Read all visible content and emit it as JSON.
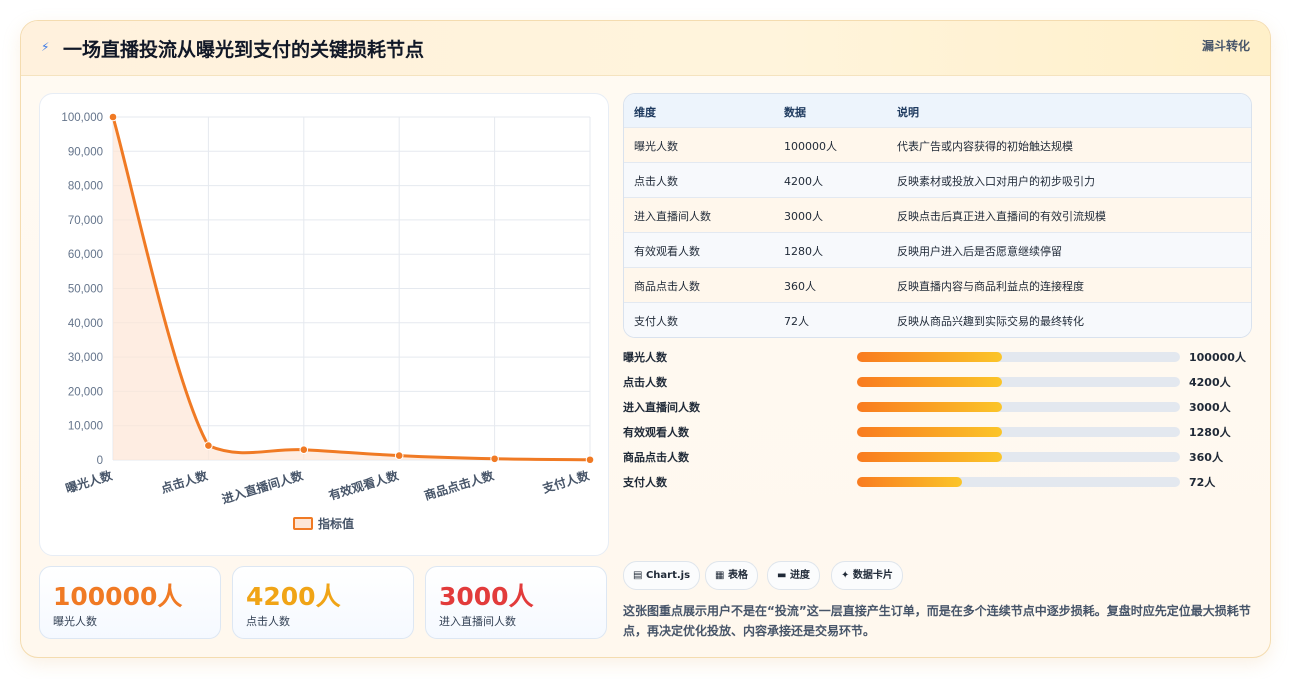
{
  "header": {
    "title": "一场直播投流从曝光到支付的关键损耗节点",
    "tag": "漏斗转化"
  },
  "chart_data": {
    "type": "line",
    "categories": [
      "曝光人数",
      "点击人数",
      "进入直播间人数",
      "有效观看人数",
      "商品点击人数",
      "支付人数"
    ],
    "series": [
      {
        "name": "指标值",
        "values": [
          100000,
          4200,
          3000,
          1280,
          360,
          72
        ]
      }
    ],
    "ylim": [
      0,
      100000
    ],
    "yticks": [
      "100,000",
      "90,000",
      "80,000",
      "70,000",
      "60,000",
      "50,000",
      "40,000",
      "30,000",
      "20,000",
      "10,000",
      "0"
    ],
    "legend": "bottom",
    "grid": true,
    "colors": {
      "line": "#f07a24",
      "fill": "#fde6d6"
    }
  },
  "stats": [
    {
      "value": "100000人",
      "label": "曝光人数",
      "color": "#f07a24"
    },
    {
      "value": "4200人",
      "label": "点击人数",
      "color": "#f0a416"
    },
    {
      "value": "3000人",
      "label": "进入直播间人数",
      "color": "#e23b3b"
    }
  ],
  "table": {
    "headers": [
      "维度",
      "数据",
      "说明"
    ],
    "rows": [
      [
        "曝光人数",
        "100000人",
        "代表广告或内容获得的初始触达规模"
      ],
      [
        "点击人数",
        "4200人",
        "反映素材或投放入口对用户的初步吸引力"
      ],
      [
        "进入直播间人数",
        "3000人",
        "反映点击后真正进入直播间的有效引流规模"
      ],
      [
        "有效观看人数",
        "1280人",
        "反映用户进入后是否愿意继续停留"
      ],
      [
        "商品点击人数",
        "360人",
        "反映直播内容与商品利益点的连接程度"
      ],
      [
        "支付人数",
        "72人",
        "反映从商品兴趣到实际交易的最终转化"
      ]
    ]
  },
  "bars": [
    {
      "label": "曝光人数",
      "value": "100000人",
      "fill": 0.45
    },
    {
      "label": "点击人数",
      "value": "4200人",
      "fill": 0.45
    },
    {
      "label": "进入直播间人数",
      "value": "3000人",
      "fill": 0.45
    },
    {
      "label": "有效观看人数",
      "value": "1280人",
      "fill": 0.45
    },
    {
      "label": "商品点击人数",
      "value": "360人",
      "fill": 0.45
    },
    {
      "label": "支付人数",
      "value": "72人",
      "fill": 0.325
    }
  ],
  "chips": [
    "Chart.js",
    "表格",
    "进度",
    "数据卡片"
  ],
  "note": "这张图重点展示用户不是在“投流”这一层直接产生订单，而是在多个连续节点中逐步损耗。复盘时应先定位最大损耗节点，再决定优化投放、内容承接还是交易环节。"
}
